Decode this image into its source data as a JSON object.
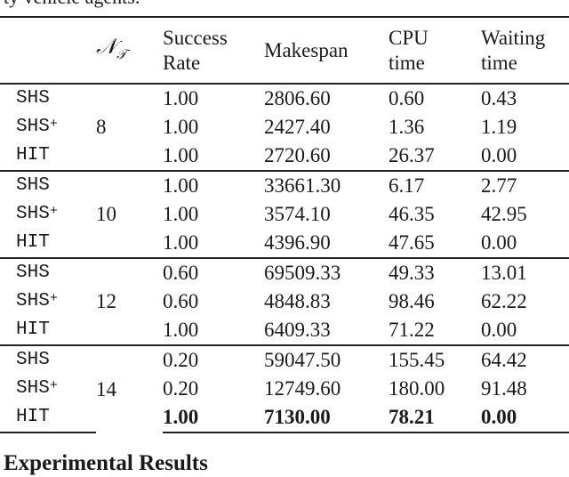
{
  "top_fragment": "ty vehicle agents.",
  "table": {
    "headers": {
      "algorithm": "",
      "n_tau": {
        "main": "𝒩",
        "sub": "𝒯"
      },
      "success_rate": [
        "Success",
        "Rate"
      ],
      "makespan": "Makespan",
      "cpu_time": [
        "CPU",
        "time"
      ],
      "waiting_time": [
        "Waiting",
        "time"
      ]
    },
    "groups": [
      {
        "n": "8",
        "rows": [
          {
            "alg": "SHS",
            "plus": false,
            "success": "1.00",
            "makespan": "2806.60",
            "cpu": "0.60",
            "waiting": "0.43",
            "bold": false
          },
          {
            "alg": "SHS",
            "plus": true,
            "success": "1.00",
            "makespan": "2427.40",
            "cpu": "1.36",
            "waiting": "1.19",
            "bold": false
          },
          {
            "alg": "HIT",
            "plus": false,
            "success": "1.00",
            "makespan": "2720.60",
            "cpu": "26.37",
            "waiting": "0.00",
            "bold": false
          }
        ]
      },
      {
        "n": "10",
        "rows": [
          {
            "alg": "SHS",
            "plus": false,
            "success": "1.00",
            "makespan": "33661.30",
            "cpu": "6.17",
            "waiting": "2.77",
            "bold": false
          },
          {
            "alg": "SHS",
            "plus": true,
            "success": "1.00",
            "makespan": "3574.10",
            "cpu": "46.35",
            "waiting": "42.95",
            "bold": false
          },
          {
            "alg": "HIT",
            "plus": false,
            "success": "1.00",
            "makespan": "4396.90",
            "cpu": "47.65",
            "waiting": "0.00",
            "bold": false
          }
        ]
      },
      {
        "n": "12",
        "rows": [
          {
            "alg": "SHS",
            "plus": false,
            "success": "0.60",
            "makespan": "69509.33",
            "cpu": "49.33",
            "waiting": "13.01",
            "bold": false
          },
          {
            "alg": "SHS",
            "plus": true,
            "success": "0.60",
            "makespan": "4848.83",
            "cpu": "98.46",
            "waiting": "62.22",
            "bold": false
          },
          {
            "alg": "HIT",
            "plus": false,
            "success": "1.00",
            "makespan": "6409.33",
            "cpu": "71.22",
            "waiting": "0.00",
            "bold": false
          }
        ]
      },
      {
        "n": "14",
        "rows": [
          {
            "alg": "SHS",
            "plus": false,
            "success": "0.20",
            "makespan": "59047.50",
            "cpu": "155.45",
            "waiting": "64.42",
            "bold": false
          },
          {
            "alg": "SHS",
            "plus": true,
            "success": "0.20",
            "makespan": "12749.60",
            "cpu": "180.00",
            "waiting": "91.48",
            "bold": false
          },
          {
            "alg": "HIT",
            "plus": false,
            "success": "1.00",
            "makespan": "7130.00",
            "cpu": "78.21",
            "waiting": "0.00",
            "bold": true
          }
        ]
      }
    ]
  },
  "caption": "Experimental Results"
}
